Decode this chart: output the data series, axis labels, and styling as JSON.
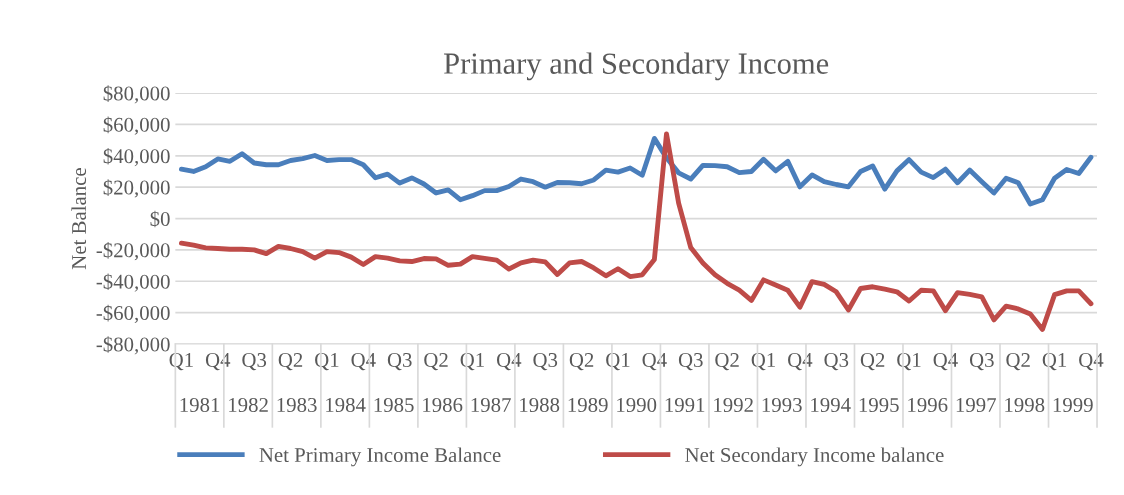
{
  "chart_data": {
    "type": "line",
    "title": "Primary and Secondary Income",
    "ylabel": "Net Balance",
    "categories": [
      "Q1",
      null,
      null,
      "Q4",
      null,
      null,
      "Q3",
      null,
      null,
      "Q2",
      null,
      null,
      "Q1",
      null,
      null,
      "Q4",
      null,
      null,
      "Q3",
      null,
      null,
      "Q2",
      null,
      null,
      "Q1",
      null,
      null,
      "Q4",
      null,
      null,
      "Q3",
      null,
      null,
      "Q2",
      null,
      null,
      "Q1",
      null,
      null,
      "Q4",
      null,
      null,
      "Q3",
      null,
      null,
      "Q2",
      null,
      null,
      "Q1",
      null,
      null,
      "Q4",
      null,
      null,
      "Q3",
      null,
      null,
      "Q2",
      null,
      null,
      "Q1",
      null,
      null,
      "Q4",
      null,
      null,
      "Q3",
      null,
      null,
      "Q2",
      null,
      null,
      "Q1",
      null,
      null,
      "Q4"
    ],
    "annotations": [
      "1981",
      "1982",
      "1983",
      "1984",
      "1985",
      "1986",
      "1987",
      "1988",
      "1989",
      "1990",
      "1991",
      "1992",
      "1993",
      "1994",
      "1995",
      "1996",
      "1997",
      "1998",
      "1999"
    ],
    "series": [
      {
        "name": "Net Primary Income Balance",
        "color": "#4a7ebb",
        "values": [
          31500,
          30000,
          33000,
          38000,
          36500,
          41300,
          35400,
          34300,
          34300,
          37000,
          38200,
          40200,
          37000,
          37600,
          37600,
          34300,
          26000,
          28300,
          22600,
          25900,
          22000,
          16300,
          18300,
          12000,
          14600,
          17800,
          17800,
          20400,
          25200,
          23500,
          20000,
          23000,
          22800,
          22200,
          24600,
          30900,
          29600,
          32200,
          27600,
          51100,
          38700,
          29100,
          25200,
          33900,
          33700,
          33000,
          29300,
          30000,
          37800,
          30400,
          36500,
          20200,
          27800,
          23500,
          21700,
          20200,
          30000,
          33500,
          18700,
          30400,
          37600,
          29600,
          26100,
          31500,
          22800,
          30900,
          23500,
          16300,
          25700,
          22800,
          9300,
          12000,
          25700,
          31300,
          28700,
          39100
        ]
      },
      {
        "name": "Net Secondary Income balance",
        "color": "#be4b48",
        "values": [
          -15700,
          -17000,
          -18700,
          -19100,
          -19600,
          -19600,
          -20000,
          -22400,
          -17800,
          -19100,
          -21100,
          -25200,
          -21100,
          -21700,
          -24600,
          -29300,
          -24300,
          -25200,
          -27000,
          -27400,
          -25500,
          -25700,
          -29800,
          -29100,
          -24300,
          -25400,
          -26500,
          -32200,
          -28300,
          -26500,
          -27600,
          -35700,
          -28300,
          -27400,
          -31500,
          -36500,
          -32000,
          -37000,
          -35900,
          -26100,
          54000,
          9800,
          -18500,
          -28300,
          -35900,
          -41300,
          -45700,
          -52200,
          -39100,
          -42400,
          -45700,
          -56500,
          -40200,
          -42000,
          -46700,
          -58300,
          -44600,
          -43500,
          -45000,
          -46700,
          -52600,
          -45700,
          -46100,
          -58700,
          -47200,
          -48300,
          -50000,
          -64600,
          -55900,
          -57600,
          -60900,
          -70700,
          -48500,
          -46100,
          -46100,
          -54300
        ]
      }
    ],
    "ylim": [
      -80000,
      80000
    ],
    "yticks": [
      {
        "value": -80000,
        "label": "-$80,000"
      },
      {
        "value": -60000,
        "label": "-$60,000"
      },
      {
        "value": -40000,
        "label": "-$40,000"
      },
      {
        "value": -20000,
        "label": "-$20,000"
      },
      {
        "value": 0,
        "label": "$0"
      },
      {
        "value": 20000,
        "label": "$20,000"
      },
      {
        "value": 40000,
        "label": "$40,000"
      },
      {
        "value": 60000,
        "label": "$60,000"
      },
      {
        "value": 80000,
        "label": "$80,000"
      }
    ],
    "grid": "y",
    "legend": "bottom",
    "marker": "none",
    "line_style": "solid"
  }
}
